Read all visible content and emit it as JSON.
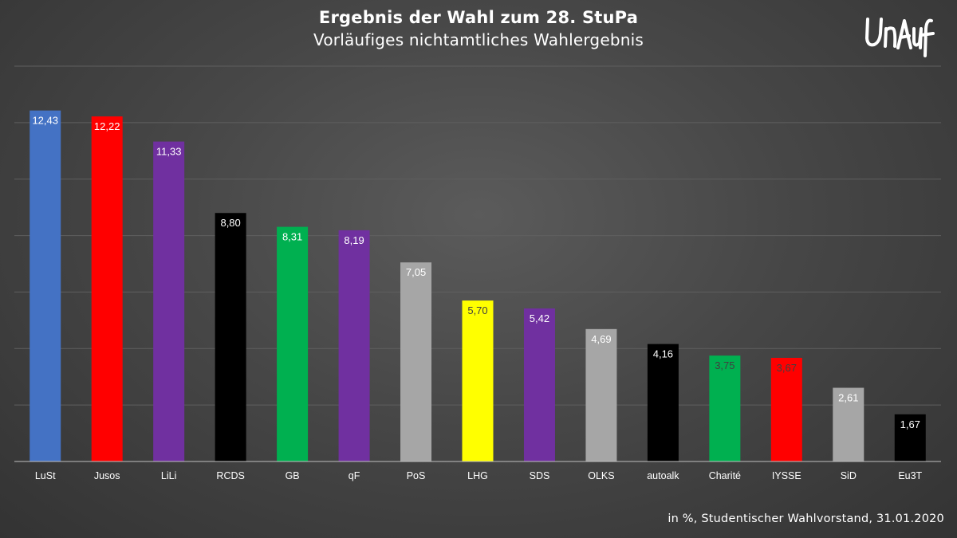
{
  "header": {
    "title": "Ergebnis der Wahl  zum 28. StuPa",
    "subtitle": "Vorläufiges nichtamtliches Wahlergebnis",
    "logo_text": "UnAuf"
  },
  "footer": {
    "note": "in %, Studentischer Wahlvorstand, 31.01.2020"
  },
  "chart_data": {
    "type": "bar",
    "title": "Ergebnis der Wahl  zum 28. StuPa",
    "subtitle": "Vorläufiges nichtamtliches Wahlergebnis",
    "xlabel": "",
    "ylabel": "",
    "ylim": [
      0,
      14
    ],
    "grid": true,
    "categories": [
      "LuSt",
      "Jusos",
      "LiLi",
      "RCDS",
      "GB",
      "qF",
      "PoS",
      "LHG",
      "SDS",
      "OLKS",
      "autoalk",
      "Charité",
      "IYSSE",
      "SiD",
      "Eu3T"
    ],
    "values": [
      12.43,
      12.22,
      11.33,
      8.8,
      8.31,
      8.19,
      7.05,
      5.7,
      5.42,
      4.69,
      4.16,
      3.75,
      3.67,
      2.61,
      1.67
    ],
    "value_labels": [
      "12,43",
      "12,22",
      "11,33",
      "8,80",
      "8,31",
      "8,19",
      "7,05",
      "5,70",
      "5,42",
      "4,69",
      "4,16",
      "3,75",
      "3,67",
      "2,61",
      "1,67"
    ],
    "colors": [
      "#4472c4",
      "#ff0000",
      "#7030a0",
      "#000000",
      "#00b050",
      "#7030a0",
      "#a6a6a6",
      "#ffff00",
      "#7030a0",
      "#a6a6a6",
      "#000000",
      "#00b050",
      "#ff0000",
      "#a6a6a6",
      "#000000"
    ],
    "label_colors": [
      "#ffffff",
      "#ffffff",
      "#ffffff",
      "#ffffff",
      "#ffffff",
      "#ffffff",
      "#ffffff",
      "#404040",
      "#ffffff",
      "#ffffff",
      "#ffffff",
      "#404040",
      "#404040",
      "#ffffff",
      "#ffffff"
    ]
  }
}
